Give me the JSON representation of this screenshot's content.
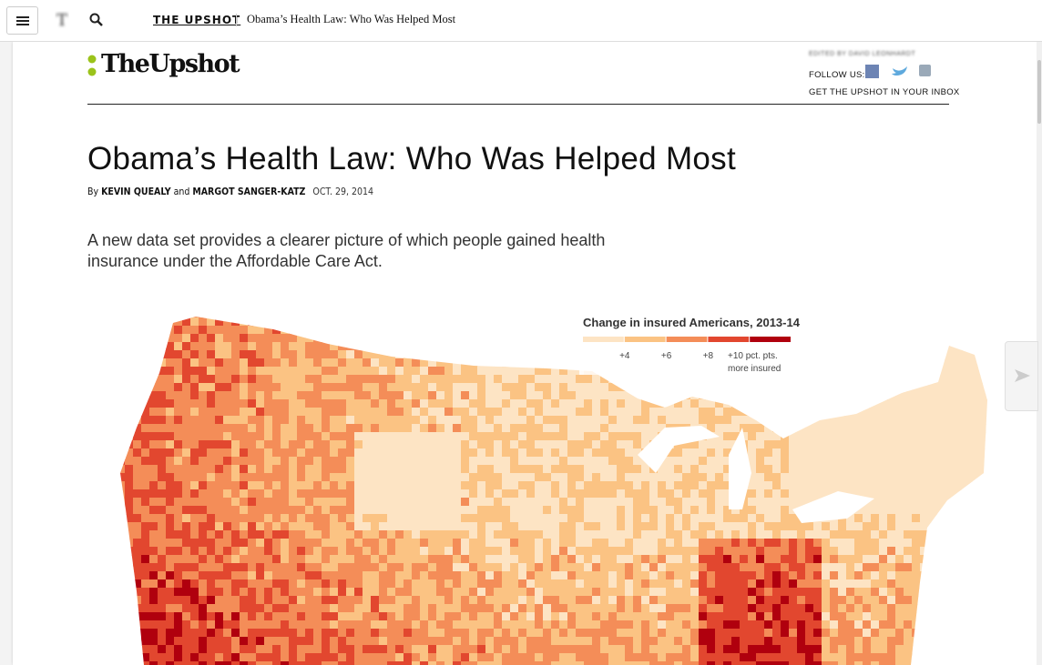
{
  "top_bar": {
    "section": "THE UPSHOT",
    "headline": "Obama’s Health Law: Who Was Helped Most"
  },
  "masthead": {
    "logo": "TheUpshot",
    "editor": "EDITED BY DAVID LEONHARDT",
    "follow": "FOLLOW US:",
    "newsletter": "GET THE UPSHOT IN YOUR INBOX"
  },
  "article": {
    "title": "Obama’s Health Law: Who Was Helped Most",
    "byline_prefix": "By",
    "authors": [
      "KEVIN QUEALY",
      "MARGOT SANGER-KATZ"
    ],
    "byline_joiner": "and",
    "date": "OCT. 29, 2014",
    "summary": "A new data set provides a clearer picture of which people gained health insurance under the Affordable Care Act."
  },
  "legend": {
    "title": "Change in insured Americans, 2013-14",
    "colors": [
      "#fde4c4",
      "#fbc383",
      "#f48d58",
      "#e2472f",
      "#b0000e"
    ],
    "labels": [
      "+4",
      "+6",
      "+8",
      "+10 pct. pts.",
      "more insured"
    ]
  }
}
